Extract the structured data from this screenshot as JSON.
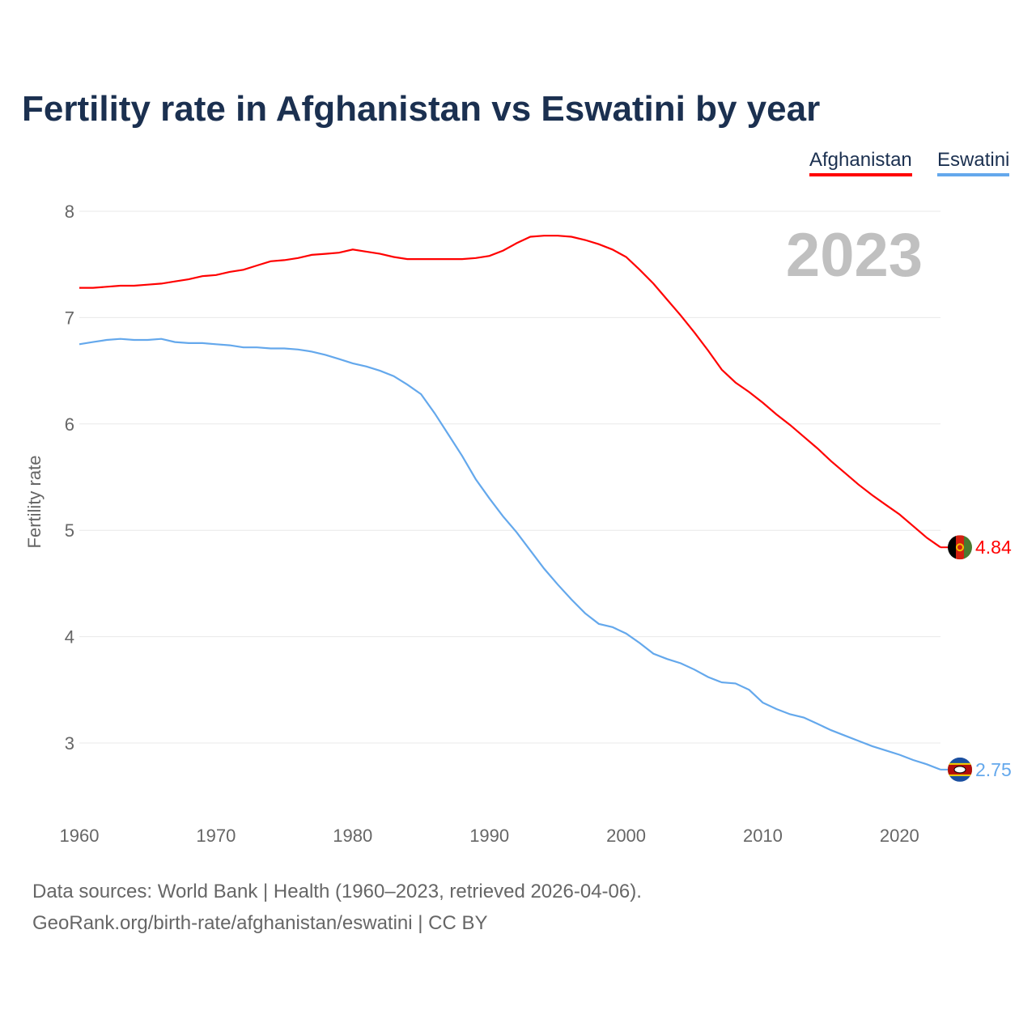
{
  "title": "Fertility rate in Afghanistan vs Eswatini by year",
  "footer": {
    "line1": "Data sources: World Bank | Health (1960–2023, retrieved 2026-04-06).",
    "line2": "GeoRank.org/birth-rate/afghanistan/eswatini | CC BY"
  },
  "chart_data": {
    "type": "line",
    "title": "Fertility rate in Afghanistan vs Eswatini by year",
    "xlabel": "",
    "ylabel": "Fertility rate",
    "year_label": "2023",
    "xlim": [
      1960,
      2023
    ],
    "ylim": [
      2.5,
      8
    ],
    "xticks": [
      1960,
      1970,
      1980,
      1990,
      2000,
      2010,
      2020
    ],
    "yticks": [
      3,
      4,
      5,
      6,
      7,
      8
    ],
    "grid": true,
    "legend_position": "top-right",
    "x": [
      1960,
      1961,
      1962,
      1963,
      1964,
      1965,
      1966,
      1967,
      1968,
      1969,
      1970,
      1971,
      1972,
      1973,
      1974,
      1975,
      1976,
      1977,
      1978,
      1979,
      1980,
      1981,
      1982,
      1983,
      1984,
      1985,
      1986,
      1987,
      1988,
      1989,
      1990,
      1991,
      1992,
      1993,
      1994,
      1995,
      1996,
      1997,
      1998,
      1999,
      2000,
      2001,
      2002,
      2003,
      2004,
      2005,
      2006,
      2007,
      2008,
      2009,
      2010,
      2011,
      2012,
      2013,
      2014,
      2015,
      2016,
      2017,
      2018,
      2019,
      2020,
      2021,
      2022,
      2023
    ],
    "series": [
      {
        "name": "Afghanistan",
        "color": "#ff0000",
        "end_label": "4.84",
        "values": [
          7.28,
          7.28,
          7.29,
          7.3,
          7.3,
          7.31,
          7.32,
          7.34,
          7.36,
          7.39,
          7.4,
          7.43,
          7.45,
          7.49,
          7.53,
          7.54,
          7.56,
          7.59,
          7.6,
          7.61,
          7.64,
          7.62,
          7.6,
          7.57,
          7.55,
          7.55,
          7.55,
          7.55,
          7.55,
          7.56,
          7.58,
          7.63,
          7.7,
          7.76,
          7.77,
          7.77,
          7.76,
          7.73,
          7.69,
          7.64,
          7.57,
          7.45,
          7.32,
          7.17,
          7.02,
          6.86,
          6.69,
          6.51,
          6.39,
          6.3,
          6.2,
          6.09,
          5.99,
          5.88,
          5.77,
          5.65,
          5.54,
          5.43,
          5.33,
          5.24,
          5.15,
          5.04,
          4.93,
          4.84
        ]
      },
      {
        "name": "Eswatini",
        "color": "#64a8ec",
        "end_label": "2.75",
        "values": [
          6.75,
          6.77,
          6.79,
          6.8,
          6.79,
          6.79,
          6.8,
          6.77,
          6.76,
          6.76,
          6.75,
          6.74,
          6.72,
          6.72,
          6.71,
          6.71,
          6.7,
          6.68,
          6.65,
          6.61,
          6.57,
          6.54,
          6.5,
          6.45,
          6.37,
          6.28,
          6.1,
          5.9,
          5.7,
          5.48,
          5.3,
          5.13,
          4.98,
          4.81,
          4.64,
          4.49,
          4.35,
          4.22,
          4.12,
          4.09,
          4.03,
          3.94,
          3.84,
          3.79,
          3.75,
          3.69,
          3.62,
          3.57,
          3.56,
          3.5,
          3.38,
          3.32,
          3.27,
          3.24,
          3.18,
          3.12,
          3.07,
          3.02,
          2.97,
          2.93,
          2.89,
          2.84,
          2.8,
          2.75
        ]
      }
    ]
  }
}
